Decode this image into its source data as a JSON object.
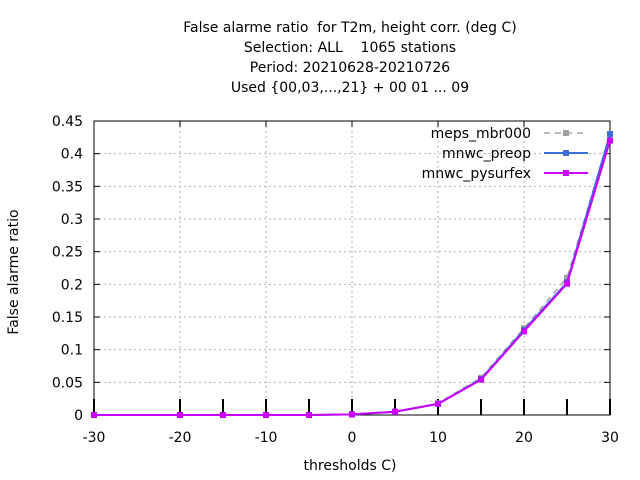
{
  "chart_data": {
    "type": "line",
    "title_lines": [
      "False alarme ratio  for T2m, height corr. (deg C)",
      "Selection: ALL    1065 stations",
      "Period: 20210628-20210726",
      "Used {00,03,...,21} + 00 01 ... 09"
    ],
    "xlabel": "thresholds C)",
    "ylabel": "False alarme ratio",
    "xlim": [
      -30,
      30
    ],
    "ylim": [
      0,
      0.45
    ],
    "xticks": [
      -30,
      -20,
      -10,
      0,
      10,
      20,
      30
    ],
    "yticks": [
      0,
      0.05,
      0.1,
      0.15,
      0.2,
      0.25,
      0.3,
      0.35,
      0.4,
      0.45
    ],
    "xtick_labels": [
      "-30",
      "-20",
      "-10",
      "0",
      "10",
      "20",
      "30"
    ],
    "ytick_labels": [
      "0",
      "0.05",
      "0.1",
      "0.15",
      "0.2",
      "0.25",
      "0.3",
      "0.35",
      "0.4",
      "0.45"
    ],
    "grid": true,
    "legend_position": "top-right",
    "x": [
      -30,
      -20,
      -15,
      -10,
      -5,
      0,
      5,
      10,
      15,
      20,
      25,
      30
    ],
    "series": [
      {
        "name": "meps_mbr000",
        "color": "#a0a0a0",
        "dashed": true,
        "values": [
          0,
          0,
          0,
          0,
          0,
          0.001,
          0.005,
          0.018,
          0.057,
          0.133,
          0.21,
          0.43
        ]
      },
      {
        "name": "mnwc_preop",
        "color": "#3a6fd8",
        "dashed": false,
        "values": [
          0,
          0,
          0,
          0,
          0,
          0.001,
          0.005,
          0.017,
          0.055,
          0.13,
          0.203,
          0.43
        ]
      },
      {
        "name": "mnwc_pysurfex",
        "color": "#cc00ff",
        "dashed": false,
        "values": [
          0,
          0,
          0,
          0,
          0,
          0.001,
          0.005,
          0.017,
          0.054,
          0.128,
          0.201,
          0.42
        ]
      }
    ]
  }
}
